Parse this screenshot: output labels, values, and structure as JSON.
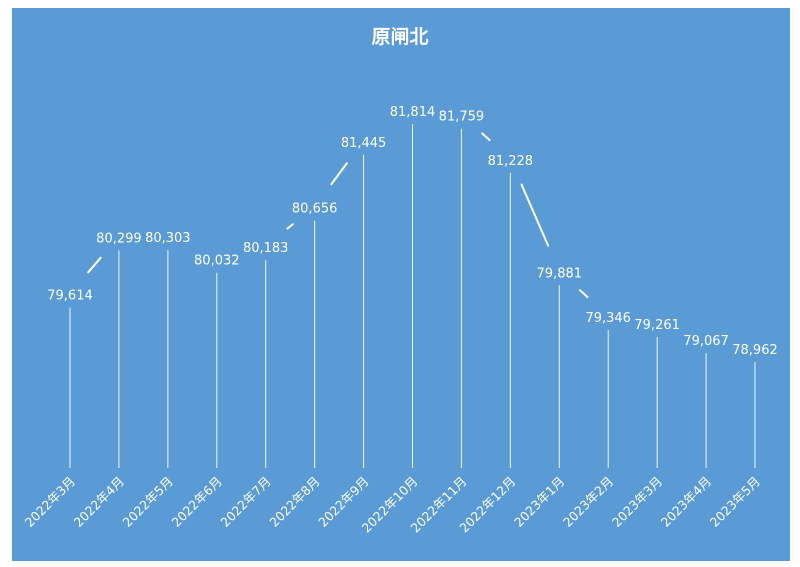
{
  "chart_data": {
    "type": "line",
    "title": "原闸北",
    "categories": [
      "2022年3月",
      "2022年4月",
      "2022年5月",
      "2022年6月",
      "2022年7月",
      "2022年8月",
      "2022年9月",
      "2022年10月",
      "2022年11月",
      "2022年12月",
      "2023年1月",
      "2023年2月",
      "2023年3月",
      "2023年4月",
      "2023年5月"
    ],
    "values": [
      79614,
      80299,
      80303,
      80032,
      80183,
      80656,
      81445,
      81814,
      81759,
      81228,
      79881,
      79346,
      79261,
      79067,
      78962
    ],
    "value_labels": [
      "79,614",
      "80,299",
      "80,303",
      "80,032",
      "80,183",
      "80,656",
      "81,445",
      "81,814",
      "81,759",
      "81,228",
      "79,881",
      "79,346",
      "79,261",
      "79,067",
      "78,962"
    ],
    "grid": false,
    "legend": "none",
    "drop_lines": true,
    "colors": {
      "background": "#5b9bd5",
      "line": "#ffffff",
      "text": "#ffffff"
    }
  }
}
